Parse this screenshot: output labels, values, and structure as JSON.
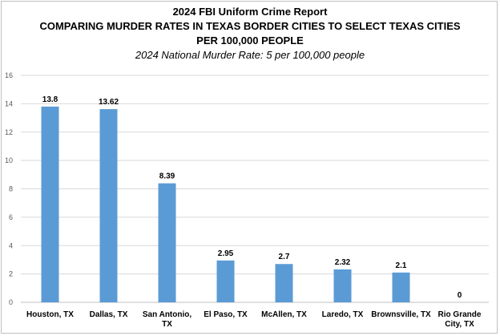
{
  "chart_data": {
    "type": "bar",
    "title": "2024 FBI Uniform Crime Report",
    "title_line2": "COMPARING MURDER RATES IN TEXAS BORDER CITIES TO SELECT TEXAS CITIES",
    "title_line3": "PER 100,000 PEOPLE",
    "subtitle": "2024 National Murder Rate: 5 per 100,000 people",
    "categories": [
      "Houston, TX",
      "Dallas, TX",
      "San Antonio, TX",
      "El Paso, TX",
      "McAllen, TX",
      "Laredo, TX",
      "Brownsville, TX",
      "Rio Grande City, TX"
    ],
    "category_lines": [
      [
        "Houston, TX"
      ],
      [
        "Dallas, TX"
      ],
      [
        "San Antonio,",
        "TX"
      ],
      [
        "El Paso, TX"
      ],
      [
        "McAllen, TX"
      ],
      [
        "Laredo, TX"
      ],
      [
        "Brownsville, TX"
      ],
      [
        "Rio Grande",
        "City, TX"
      ]
    ],
    "values": [
      13.8,
      13.62,
      8.39,
      2.95,
      2.7,
      2.32,
      2.1,
      0
    ],
    "value_labels": [
      "13.8",
      "13.62",
      "8.39",
      "2.95",
      "2.7",
      "2.32",
      "2.1",
      "0"
    ],
    "ylim": [
      0,
      16
    ],
    "yticks": [
      0,
      2,
      4,
      6,
      8,
      10,
      12,
      14,
      16
    ],
    "grid": true,
    "bar_color": "#5b9bd5",
    "grid_color": "#d9d9d9"
  }
}
